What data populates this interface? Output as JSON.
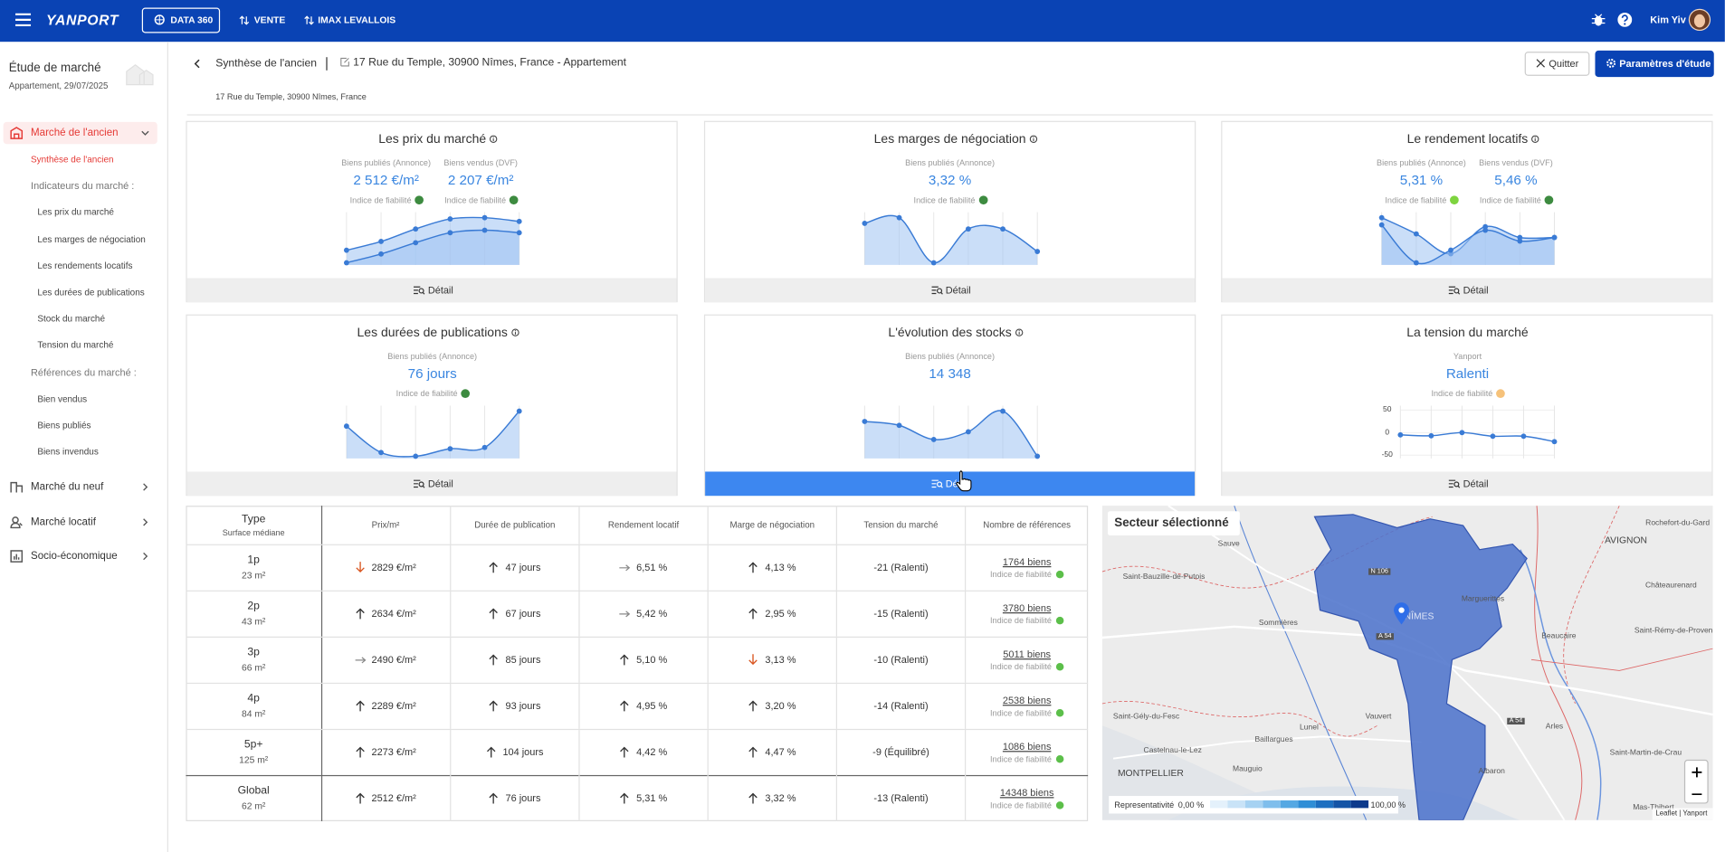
{
  "nav": {
    "brand": "YANPORT",
    "items": [
      "DATA 360",
      "VENTE",
      "IMAX LEVALLOIS"
    ],
    "user": "Kim Yiv"
  },
  "sidebar": {
    "title": "Étude de marché",
    "subtitle": "Appartement, 29/07/2025",
    "menu": [
      {
        "label": "Marché de l'ancien",
        "items": [
          "Synthèse de l'ancien",
          "Indicateurs du marché :",
          "Les prix du marché",
          "Les marges de négociation",
          "Les rendements locatifs",
          "Les durées de publications",
          "Stock du marché",
          "Tension du marché",
          "Références du marché :",
          "Bien vendus",
          "Biens publiés",
          "Biens invendus"
        ]
      },
      {
        "label": "Marché du neuf"
      },
      {
        "label": "Marché locatif"
      },
      {
        "label": "Socio-économique"
      }
    ]
  },
  "header": {
    "breadcrumb": "Synthèse de l'ancien",
    "address": "17 Rue du Temple, 30900 Nîmes, France - Appartement",
    "subaddress": "17 Rue du Temple, 30900 Nîmes, France",
    "buttons": [
      "Quitter",
      "Paramètres d'étude"
    ]
  },
  "cards": [
    {
      "title": "Les prix du marché",
      "info": true,
      "detail": "Détail",
      "metrics": [
        {
          "label": "Biens publiés (Annonce)",
          "value": "2 512 €/m²",
          "reliability": "Indice de fiabilité",
          "reliability_color": "#3d8b40"
        },
        {
          "label": "Biens vendus (DVF)",
          "value": "2 207 €/m²",
          "reliability": "Indice de fiabilité",
          "reliability_color": "#3d8b40"
        }
      ],
      "sparkline": {
        "series": [
          {
            "values": [
              14,
              21,
              31,
              39,
              40,
              37
            ]
          },
          {
            "values": [
              4,
              11,
              20,
              28,
              30,
              28
            ]
          }
        ]
      }
    },
    {
      "title": "Les marges de négociation",
      "info": true,
      "detail": "Détail",
      "metrics": [
        {
          "label": "Biens publiés (Annonce)",
          "value": "3,32 %",
          "reliability": "Indice de fiabilité",
          "reliability_color": "#3d8b40"
        }
      ],
      "sparkline": {
        "series": [
          {
            "values": [
              17,
              18,
              10,
              16,
              16,
              12
            ]
          }
        ]
      }
    },
    {
      "title": "Le rendement locatifs",
      "info": true,
      "detail": "Détail",
      "metrics": [
        {
          "label": "Biens publiés (Annonce)",
          "value": "5,31 %",
          "reliability": "Indice de fiabilité",
          "reliability_color": "#7ed43f"
        },
        {
          "label": "Biens vendus (DVF)",
          "value": "5,46 %",
          "reliability": "Indice de fiabilité",
          "reliability_color": "#3d8b40"
        }
      ],
      "sparkline": {
        "series": [
          {
            "values": [
              32,
              23,
              12,
              27,
              21,
              21
            ]
          },
          {
            "values": [
              28,
              7,
              14,
              25,
              19,
              21
            ]
          }
        ]
      }
    },
    {
      "title": "Les durées de publications",
      "info": true,
      "detail": "Détail",
      "metrics": [
        {
          "label": "Biens publiés (Annonce)",
          "value": "76 jours",
          "reliability": "Indice de fiabilité",
          "reliability_color": "#3d8b40"
        }
      ],
      "sparkline": {
        "series": [
          {
            "values": [
              28,
              7,
              4,
              10,
              11,
              40
            ]
          }
        ]
      }
    },
    {
      "title": "L'évolution des stocks",
      "info": true,
      "detail": "Détail",
      "active": true,
      "metrics": [
        {
          "label": "Biens publiés (Annonce)",
          "value": "14 348"
        }
      ],
      "sparkline": {
        "series": [
          {
            "values": [
              32,
              29,
              18,
              24,
              40,
              5
            ]
          }
        ]
      }
    },
    {
      "title": "La tension du marché",
      "info": false,
      "detail": "Détail",
      "metrics": [
        {
          "label": "Yanport",
          "value": "Ralenti",
          "reliability": "Indice de fiabilité",
          "reliability_color": "#f6c27a"
        }
      ],
      "sparkline": {
        "series": [
          {
            "values": [
              -5,
              -7,
              0,
              -8,
              -8,
              -20
            ]
          }
        ],
        "ylim": [
          -50,
          50
        ],
        "yticks": [
          50,
          0,
          -50
        ]
      }
    }
  ],
  "table": {
    "type_header": "Type",
    "type_subheader": "Surface médiane",
    "columns": [
      "Prix/m²",
      "Durée de publication",
      "Rendement locatif",
      "Marge de négociation",
      "Tension du marché",
      "Nombre de références"
    ],
    "rows": [
      {
        "type": "1p",
        "surface": "23 m²",
        "cells": [
          {
            "text": "2829 €/m²",
            "trend": "down"
          },
          {
            "text": "47 jours",
            "trend": "up"
          },
          {
            "text": "6,51 %",
            "trend": "right"
          },
          {
            "text": "4,13 %",
            "trend": "up"
          }
        ],
        "tension": "-21 (Ralenti)",
        "references": "1764 biens",
        "reliability": "Indice de fiabilité"
      },
      {
        "type": "2p",
        "surface": "43 m²",
        "cells": [
          {
            "text": "2634 €/m²",
            "trend": "up"
          },
          {
            "text": "67 jours",
            "trend": "up"
          },
          {
            "text": "5,42 %",
            "trend": "right"
          },
          {
            "text": "2,95 %",
            "trend": "up"
          }
        ],
        "tension": "-15 (Ralenti)",
        "references": "3780 biens",
        "reliability": "Indice de fiabilité"
      },
      {
        "type": "3p",
        "surface": "66 m²",
        "cells": [
          {
            "text": "2490 €/m²",
            "trend": "right"
          },
          {
            "text": "85 jours",
            "trend": "up"
          },
          {
            "text": "5,10 %",
            "trend": "up"
          },
          {
            "text": "3,13 %",
            "trend": "down"
          }
        ],
        "tension": "-10 (Ralenti)",
        "references": "5011 biens",
        "reliability": "Indice de fiabilité"
      },
      {
        "type": "4p",
        "surface": "84 m²",
        "cells": [
          {
            "text": "2289 €/m²",
            "trend": "up"
          },
          {
            "text": "93 jours",
            "trend": "up"
          },
          {
            "text": "4,95 %",
            "trend": "up"
          },
          {
            "text": "3,20 %",
            "trend": "up"
          }
        ],
        "tension": "-14 (Ralenti)",
        "references": "2538 biens",
        "reliability": "Indice de fiabilité"
      },
      {
        "type": "5p+",
        "surface": "125 m²",
        "cells": [
          {
            "text": "2273 €/m²",
            "trend": "up"
          },
          {
            "text": "104 jours",
            "trend": "up"
          },
          {
            "text": "4,42 %",
            "trend": "up"
          },
          {
            "text": "4,47 %",
            "trend": "up"
          }
        ],
        "tension": "-9 (Équilibré)",
        "references": "1086 biens",
        "reliability": "Indice de fiabilité"
      },
      {
        "type": "Global",
        "surface": "62 m²",
        "cells": [
          {
            "text": "2512 €/m²",
            "trend": "up"
          },
          {
            "text": "76 jours",
            "trend": "up"
          },
          {
            "text": "5,31 %",
            "trend": "up"
          },
          {
            "text": "3,32 %",
            "trend": "up"
          }
        ],
        "tension": "-13 (Ralenti)",
        "references": "14348 biens",
        "reliability": "Indice de fiabilité"
      }
    ]
  },
  "map": {
    "title": "Secteur sélectionné",
    "legend_label": "Representativité",
    "legend_min": "0,00 %",
    "legend_max": "100,00 %",
    "attribution": "Leaflet | Yanport",
    "labels": [
      "Rochefort-du-Gard",
      "AVIGNON",
      "Sauve",
      "Saint-Bauzille-de-Putois",
      "Sommières",
      "Châteaurenard",
      "Beaucaire",
      "Saint-Rémy-de-Provence",
      "Lunel",
      "Vauvert",
      "Saint-Gély-du-Fesc",
      "Castelnau-le-Lez",
      "MONTPELLIER",
      "Mauguio",
      "Baillargues",
      "Saint-Martin-de-Crau",
      "Arles",
      "Albaron",
      "Mas-Thibert",
      "NÎMES",
      "Marguerittes"
    ],
    "road_labels": [
      "N 106",
      "A 54",
      "A 54"
    ]
  }
}
